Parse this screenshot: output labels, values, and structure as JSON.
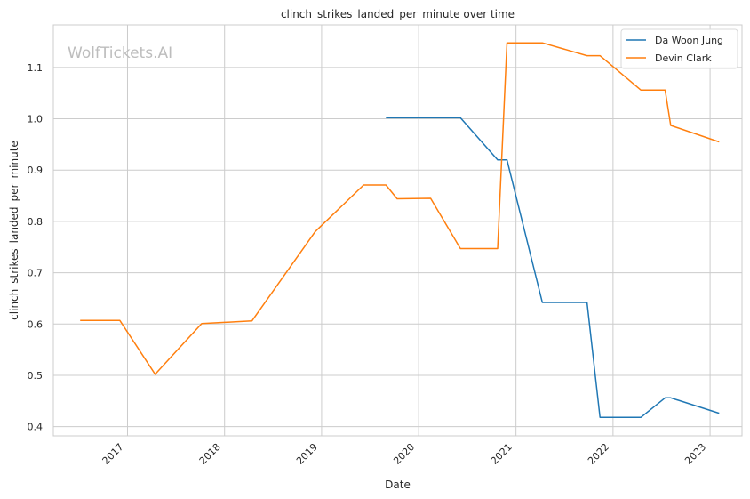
{
  "chart_data": {
    "type": "line",
    "title": "clinch_strikes_landed_per_minute over time",
    "xlabel": "Date",
    "ylabel": "clinch_strikes_landed_per_minute",
    "watermark": "WolfTickets.AI",
    "xlim": [
      "2016-03-28",
      "2023-05-01"
    ],
    "ylim": [
      0.382,
      1.183
    ],
    "x_ticks": [
      "2017",
      "2018",
      "2019",
      "2020",
      "2021",
      "2022",
      "2023"
    ],
    "y_ticks": [
      "0.4",
      "0.5",
      "0.6",
      "0.7",
      "0.8",
      "0.9",
      "1.0",
      "1.1"
    ],
    "grid": true,
    "legend_position": "top-right",
    "series": [
      {
        "name": "Da Woon Jung",
        "color": "#1f77b4",
        "points": [
          [
            "2019-08-31",
            1.002
          ],
          [
            "2020-06-06",
            1.002
          ],
          [
            "2020-10-24",
            0.92
          ],
          [
            "2020-11-28",
            0.92
          ],
          [
            "2021-04-10",
            0.642
          ],
          [
            "2021-09-25",
            0.642
          ],
          [
            "2021-11-13",
            0.418
          ],
          [
            "2022-04-16",
            0.418
          ],
          [
            "2022-07-16",
            0.456
          ],
          [
            "2022-08-06",
            0.456
          ],
          [
            "2023-02-04",
            0.426
          ]
        ]
      },
      {
        "name": "Devin Clark",
        "color": "#ff7f0e",
        "points": [
          [
            "2016-07-07",
            0.607
          ],
          [
            "2016-12-03",
            0.607
          ],
          [
            "2017-04-15",
            0.502
          ],
          [
            "2017-10-07",
            0.601
          ],
          [
            "2018-04-14",
            0.606
          ],
          [
            "2018-12-08",
            0.78
          ],
          [
            "2019-06-08",
            0.871
          ],
          [
            "2019-08-31",
            0.871
          ],
          [
            "2019-10-12",
            0.844
          ],
          [
            "2020-02-15",
            0.845
          ],
          [
            "2020-06-06",
            0.747
          ],
          [
            "2020-10-24",
            0.747
          ],
          [
            "2020-11-28",
            1.148
          ],
          [
            "2021-04-10",
            1.148
          ],
          [
            "2021-09-25",
            1.123
          ],
          [
            "2021-11-13",
            1.123
          ],
          [
            "2022-04-16",
            1.056
          ],
          [
            "2022-07-16",
            1.056
          ],
          [
            "2022-08-06",
            0.987
          ],
          [
            "2023-02-04",
            0.955
          ]
        ]
      }
    ]
  }
}
